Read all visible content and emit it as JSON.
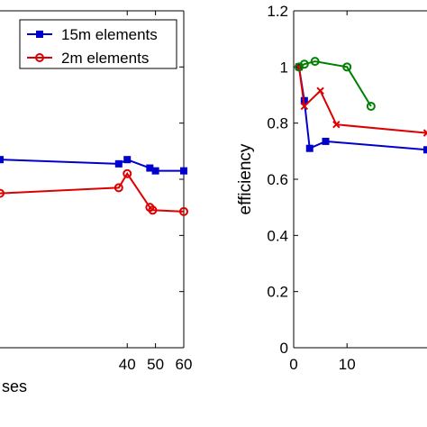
{
  "chart_data": [
    {
      "type": "line",
      "title": "",
      "xlabel": "ses",
      "ylabel": "",
      "xlim": [
        -5,
        60
      ],
      "ylim": [
        0,
        1.2
      ],
      "x_ticks": [
        40,
        50,
        60
      ],
      "y_ticks": [],
      "x_tick_labels": [
        "40",
        "50",
        "60"
      ],
      "grid": false,
      "legend_position": "top-right",
      "series": [
        {
          "name": "15m elements",
          "color": "#0000cc",
          "marker": "square",
          "x": [
            -5,
            37,
            40,
            48,
            50,
            60
          ],
          "y": [
            0.67,
            0.655,
            0.67,
            0.64,
            0.63,
            0.63
          ]
        },
        {
          "name": "2m elements",
          "color": "#dd0000",
          "marker": "circle",
          "x": [
            -5,
            37,
            40,
            48,
            49,
            60
          ],
          "y": [
            0.55,
            0.57,
            0.62,
            0.5,
            0.49,
            0.485
          ]
        }
      ]
    },
    {
      "type": "line",
      "title": "",
      "xlabel": "",
      "ylabel": "efficiency",
      "xlim": [
        0,
        25
      ],
      "ylim": [
        0,
        1.2
      ],
      "x_ticks": [
        0,
        10
      ],
      "x_tick_labels": [
        "0",
        "10"
      ],
      "y_ticks": [
        0,
        0.2,
        0.4,
        0.6,
        0.8,
        1,
        1.2
      ],
      "y_tick_labels": [
        "0",
        "0.2",
        "0.4",
        "0.6",
        "0.8",
        "1",
        "1.2"
      ],
      "grid": false,
      "series": [
        {
          "color": "#0000cc",
          "marker": "square",
          "x": [
            1,
            2,
            3,
            6,
            25
          ],
          "y": [
            1.0,
            0.88,
            0.71,
            0.735,
            0.705
          ]
        },
        {
          "color": "#dd0000",
          "marker": "x",
          "x": [
            1,
            2,
            5,
            8,
            25
          ],
          "y": [
            1.0,
            0.86,
            0.915,
            0.795,
            0.765
          ]
        },
        {
          "color": "#008000",
          "marker": "circle",
          "x": [
            1,
            2,
            4,
            10,
            14.5
          ],
          "y": [
            1.0,
            1.01,
            1.02,
            1.0,
            0.86
          ]
        }
      ]
    }
  ]
}
